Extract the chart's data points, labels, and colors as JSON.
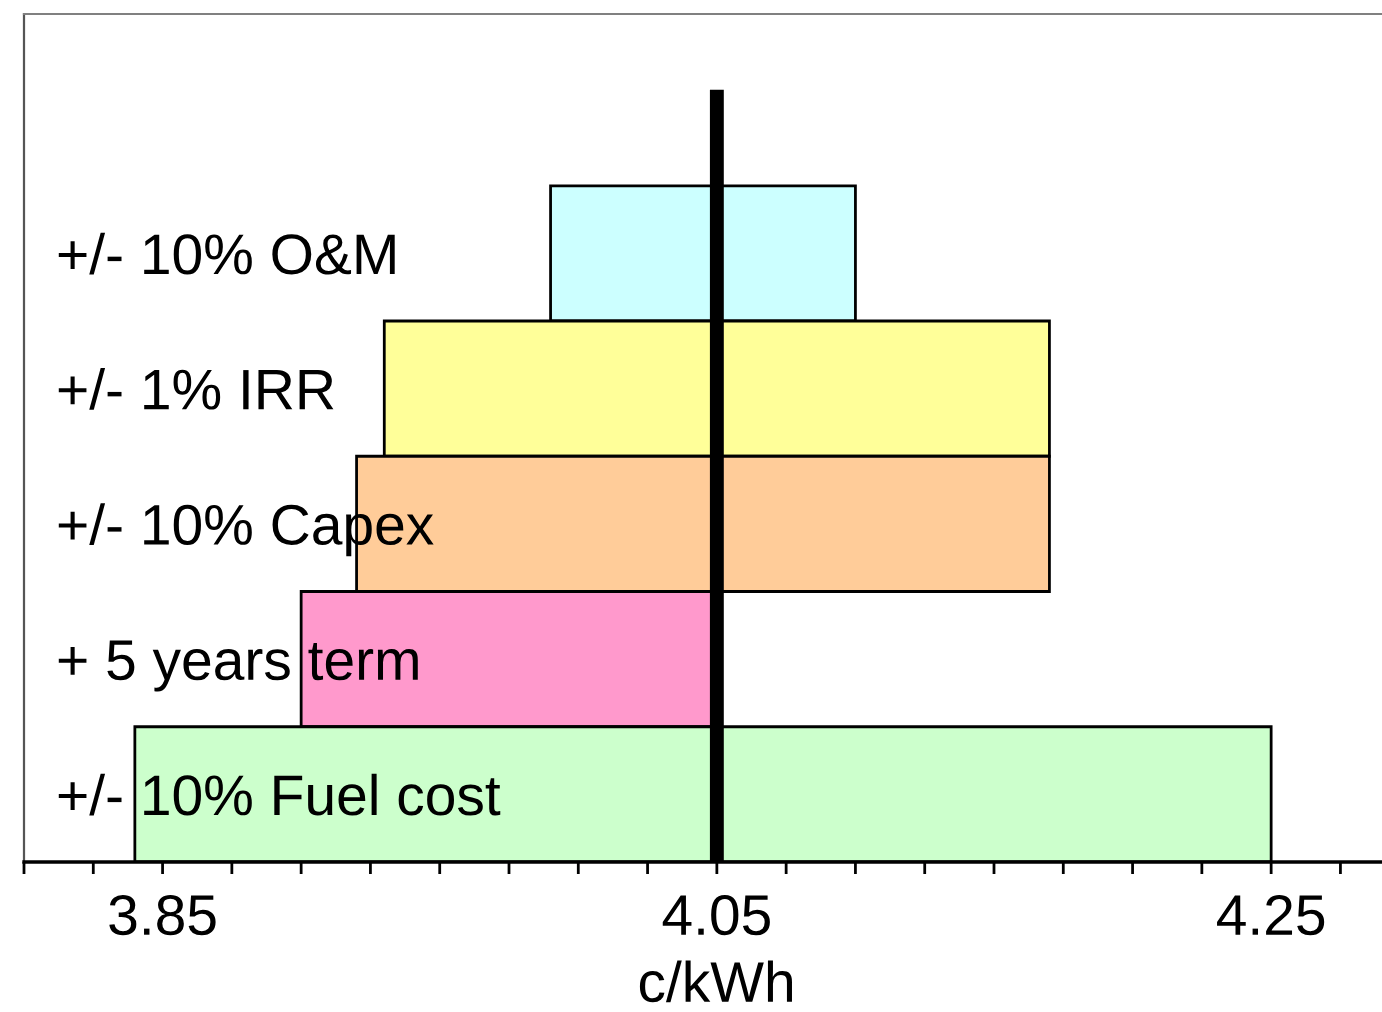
{
  "chart_data": {
    "type": "bar",
    "orientation": "horizontal",
    "categories": [
      "+/- 10% O&M",
      "+/- 1% IRR",
      "+/- 10% Capex",
      "+ 5 years term",
      "+/- 10% Fuel cost"
    ],
    "base": [
      3.99,
      3.93,
      3.92,
      3.9,
      3.84
    ],
    "values": [
      0.11,
      0.24,
      0.25,
      0.15,
      0.41
    ],
    "colors": [
      "#ccffff",
      "#ffff99",
      "#ffcc99",
      "#ff99cc",
      "#ccffcc"
    ],
    "xlabel": "c/kWh",
    "xlim": [
      3.8,
      4.29
    ],
    "xticks": [
      {
        "value": 3.8,
        "label": null
      },
      {
        "value": 3.825,
        "label": null
      },
      3.85,
      {
        "value": 3.875,
        "label": null
      },
      {
        "value": 3.9,
        "label": null
      },
      {
        "value": 3.925,
        "label": null
      },
      {
        "value": 3.95,
        "label": null
      },
      {
        "value": 3.975,
        "label": null
      },
      {
        "value": 4.0,
        "label": null
      },
      {
        "value": 4.025,
        "label": null
      },
      4.05,
      {
        "value": 4.075,
        "label": null
      },
      {
        "value": 4.1,
        "label": null
      },
      {
        "value": 4.125,
        "label": null
      },
      {
        "value": 4.15,
        "label": null
      },
      {
        "value": 4.175,
        "label": null
      },
      {
        "value": 4.2,
        "label": null
      },
      {
        "value": 4.225,
        "label": null
      },
      4.25,
      {
        "value": 4.275,
        "label": null
      }
    ],
    "ref_lines": [
      {
        "axis": "x",
        "value": 4.05,
        "color": "#000000"
      }
    ]
  }
}
